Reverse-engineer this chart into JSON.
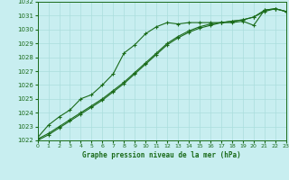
{
  "title": "Graphe pression niveau de la mer (hPa)",
  "background_color": "#c8eef0",
  "grid_color": "#aadddd",
  "line_color": "#1a6b1a",
  "xlim": [
    0,
    23
  ],
  "ylim": [
    1022,
    1032
  ],
  "xticks": [
    0,
    1,
    2,
    3,
    4,
    5,
    6,
    7,
    8,
    9,
    10,
    11,
    12,
    13,
    14,
    15,
    16,
    17,
    18,
    19,
    20,
    21,
    22,
    23
  ],
  "yticks": [
    1022,
    1023,
    1024,
    1025,
    1026,
    1027,
    1028,
    1029,
    1030,
    1031,
    1032
  ],
  "series1_x": [
    0,
    1,
    2,
    3,
    4,
    5,
    6,
    7,
    8,
    9,
    10,
    11,
    12,
    13,
    14,
    15,
    16,
    17,
    18,
    19,
    20,
    21,
    22,
    23
  ],
  "series1_y": [
    1022.2,
    1023.1,
    1023.7,
    1024.2,
    1025.0,
    1025.3,
    1026.0,
    1026.8,
    1028.3,
    1028.9,
    1029.7,
    1030.2,
    1030.5,
    1030.4,
    1030.5,
    1030.5,
    1030.5,
    1030.5,
    1030.5,
    1030.6,
    1030.3,
    1031.4,
    1031.5,
    1031.3
  ],
  "series2_x": [
    0,
    1,
    2,
    3,
    4,
    5,
    6,
    7,
    8,
    9,
    10,
    11,
    12,
    13,
    14,
    15,
    16,
    17,
    18,
    19,
    20,
    21,
    22,
    23
  ],
  "series2_y": [
    1022.1,
    1022.5,
    1023.0,
    1023.5,
    1024.0,
    1024.5,
    1025.0,
    1025.6,
    1026.2,
    1026.9,
    1027.6,
    1028.3,
    1029.0,
    1029.5,
    1029.9,
    1030.2,
    1030.4,
    1030.5,
    1030.6,
    1030.7,
    1030.9,
    1031.4,
    1031.5,
    1031.3
  ],
  "series3_x": [
    0,
    1,
    2,
    3,
    4,
    5,
    6,
    7,
    8,
    9,
    10,
    11,
    12,
    13,
    14,
    15,
    16,
    17,
    18,
    19,
    20,
    21,
    22,
    23
  ],
  "series3_y": [
    1022.0,
    1022.4,
    1022.9,
    1023.4,
    1023.9,
    1024.4,
    1024.9,
    1025.5,
    1026.1,
    1026.8,
    1027.5,
    1028.2,
    1028.9,
    1029.4,
    1029.8,
    1030.1,
    1030.3,
    1030.5,
    1030.6,
    1030.7,
    1030.9,
    1031.3,
    1031.5,
    1031.3
  ]
}
